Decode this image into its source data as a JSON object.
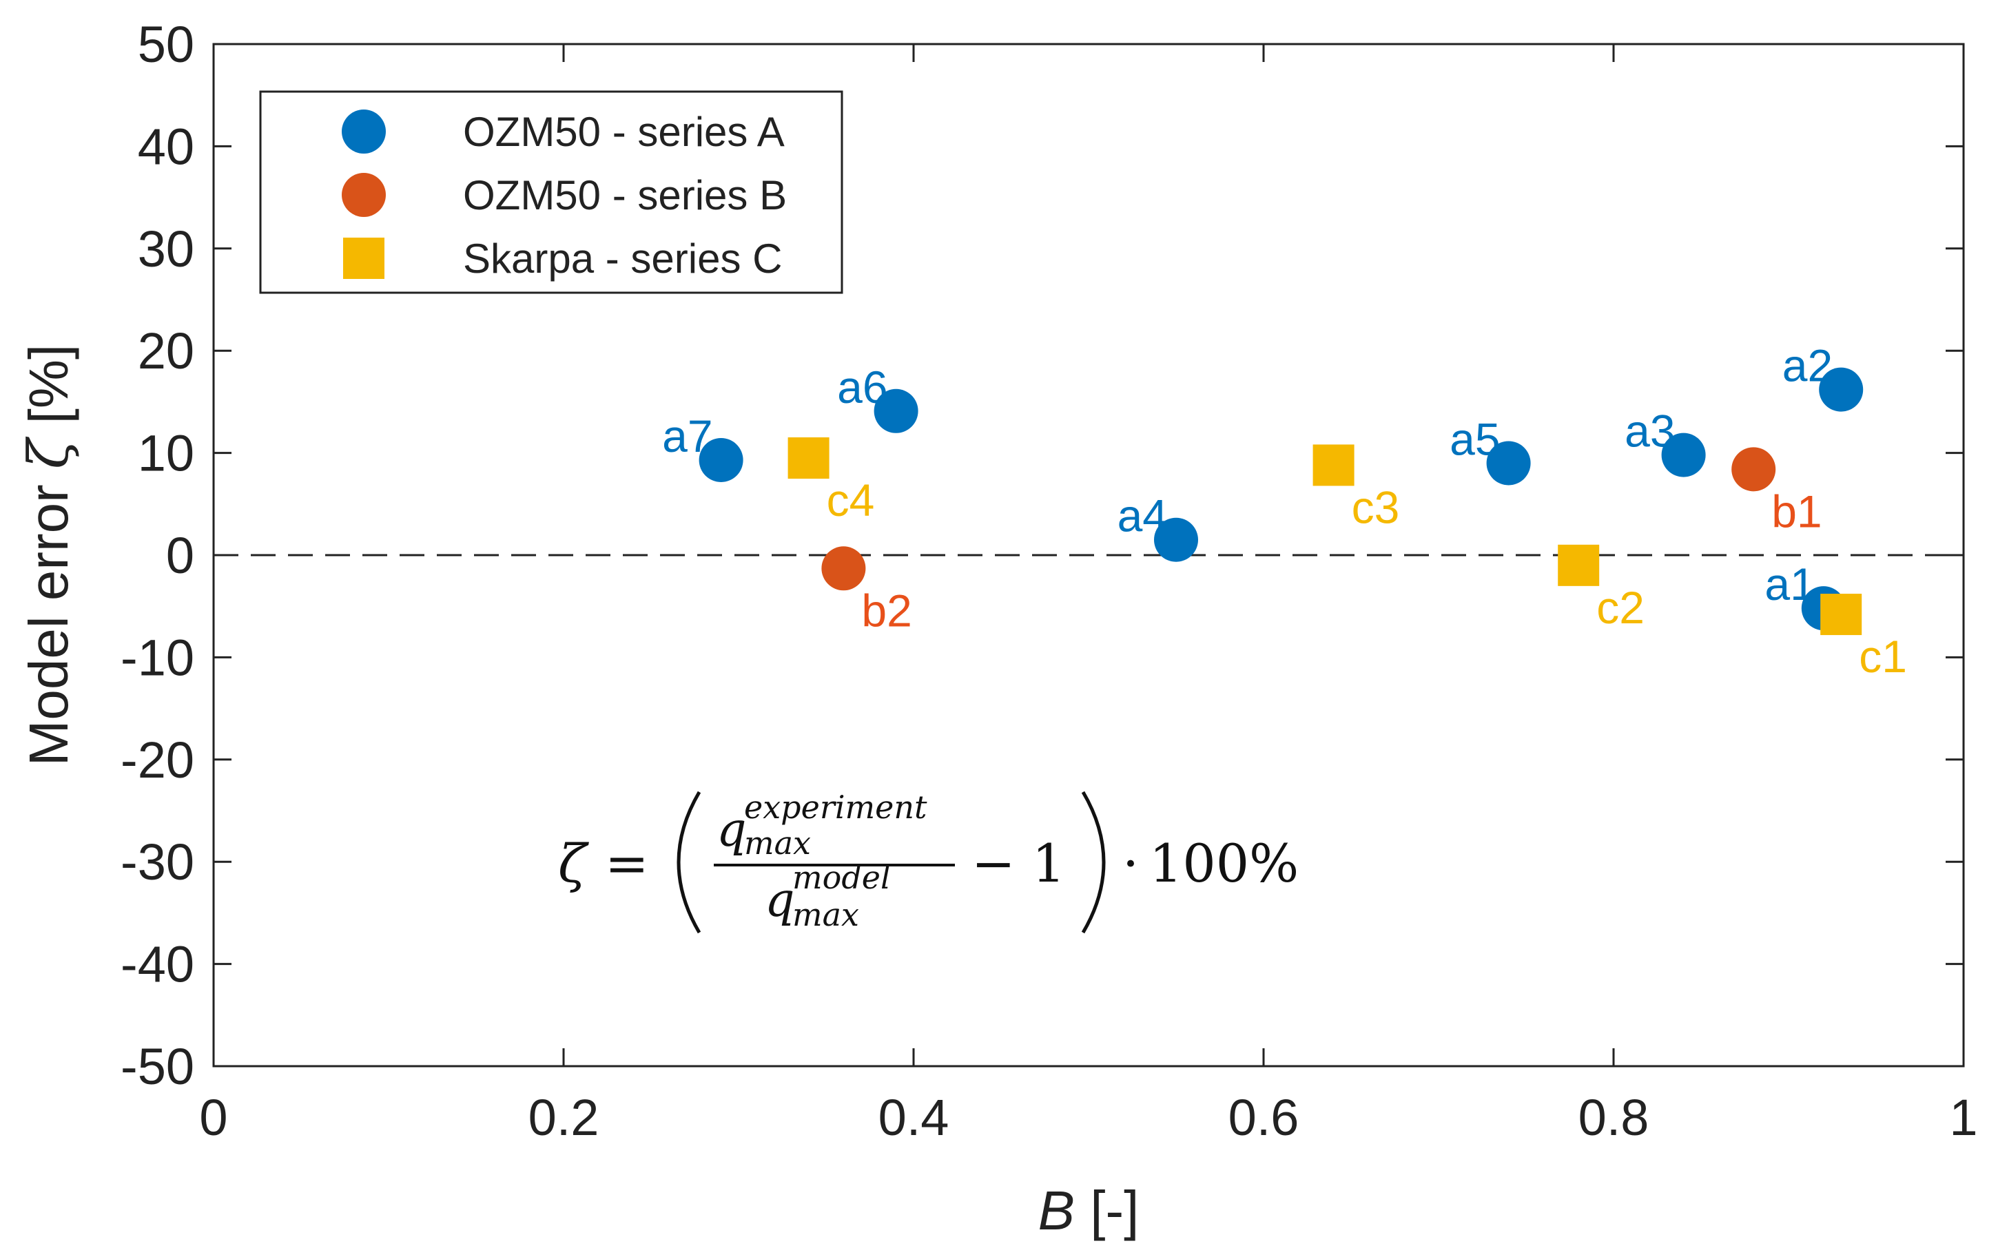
{
  "chart_data": {
    "type": "scatter",
    "title": "",
    "xlabel_var": "B",
    "xlabel_unit": " [-]",
    "ylabel": "Model error ζ [%]",
    "ylabel_parts": {
      "text": "Model error ",
      "symbol": "ζ",
      "unit": " [%]"
    },
    "xlim": [
      0,
      1
    ],
    "ylim": [
      -50,
      50
    ],
    "xticks": [
      0,
      0.2,
      0.4,
      0.6,
      0.8,
      1
    ],
    "xtick_labels": [
      "0",
      "0.2",
      "0.4",
      "0.6",
      "0.8",
      "1"
    ],
    "yticks": [
      50,
      40,
      30,
      20,
      10,
      0,
      -10,
      -20,
      -30,
      -40,
      -50
    ],
    "ytick_labels": [
      "50",
      "40",
      "30",
      "20",
      "10",
      "0",
      "-10",
      "-20",
      "-30",
      "-40",
      "-50"
    ],
    "grid": false,
    "reference_line": {
      "y": 0,
      "style": "dashed"
    },
    "legend_position": "top-left",
    "series": [
      {
        "name": "OZM50 - series A",
        "marker": "circle",
        "color": "#0072BD",
        "points": [
          {
            "label": "a1",
            "x": 0.92,
            "y": -5.2
          },
          {
            "label": "a2",
            "x": 0.93,
            "y": 16.2
          },
          {
            "label": "a3",
            "x": 0.84,
            "y": 9.8
          },
          {
            "label": "a4",
            "x": 0.55,
            "y": 1.5
          },
          {
            "label": "a5",
            "x": 0.74,
            "y": 9.0
          },
          {
            "label": "a6",
            "x": 0.39,
            "y": 14.1
          },
          {
            "label": "a7",
            "x": 0.29,
            "y": 9.3
          }
        ]
      },
      {
        "name": "OZM50 - series B",
        "marker": "circle",
        "color": "#D95319",
        "points": [
          {
            "label": "b1",
            "x": 0.88,
            "y": 8.4
          },
          {
            "label": "b2",
            "x": 0.36,
            "y": -1.3
          }
        ]
      },
      {
        "name": "Skarpa - series C",
        "marker": "square",
        "color": "#F5B800",
        "points": [
          {
            "label": "c1",
            "x": 0.93,
            "y": -5.8
          },
          {
            "label": "c2",
            "x": 0.78,
            "y": -1.0
          },
          {
            "label": "c3",
            "x": 0.64,
            "y": 8.8
          },
          {
            "label": "c4",
            "x": 0.34,
            "y": 9.5
          }
        ]
      }
    ],
    "annotation": {
      "lhs": "ζ",
      "eq": "=",
      "num_base": "q",
      "num_sup": "experiment",
      "num_sub": "max",
      "den_base": "q",
      "den_sup": "model",
      "den_sub": "max",
      "minus_one": "− 1",
      "times": "⋅",
      "tail": "100%"
    },
    "label_color_a": "#0072BD",
    "label_color_b": "#E8501A",
    "label_color_c": "#F5B800"
  }
}
